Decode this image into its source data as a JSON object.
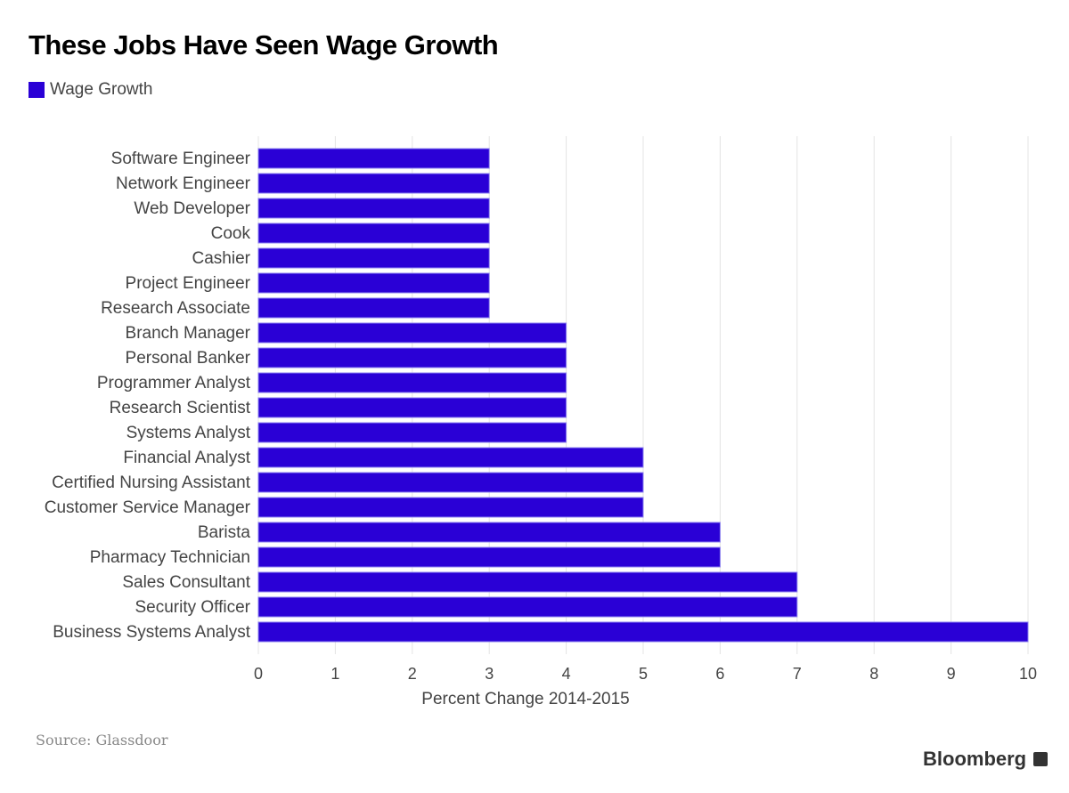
{
  "title": "These Jobs Have Seen Wage Growth",
  "source": "Source: Glassdoor",
  "logo": "Bloomberg",
  "chart_data": {
    "type": "bar",
    "orientation": "horizontal",
    "title": "These Jobs Have Seen Wage Growth",
    "xlabel": "Percent Change 2014-2015",
    "ylabel": "",
    "xlim": [
      0,
      10
    ],
    "xticks": [
      "0",
      "1",
      "2",
      "3",
      "4",
      "5",
      "6",
      "7",
      "8",
      "9",
      "10"
    ],
    "grid": true,
    "legend_placement": "top-left",
    "color": "#2a00d6",
    "categories": [
      "Software Engineer",
      "Network Engineer",
      "Web Developer",
      "Cook",
      "Cashier",
      "Project Engineer",
      "Research Associate",
      "Branch Manager",
      "Personal Banker",
      "Programmer Analyst",
      "Research Scientist",
      "Systems Analyst",
      "Financial Analyst",
      "Certified Nursing Assistant",
      "Customer Service Manager",
      "Barista",
      "Pharmacy Technician",
      "Sales Consultant",
      "Security Officer",
      "Business Systems Analyst"
    ],
    "series": [
      {
        "name": "Wage Growth",
        "values": [
          3,
          3,
          3,
          3,
          3,
          3,
          3,
          4,
          4,
          4,
          4,
          4,
          5,
          5,
          5,
          6,
          6,
          7,
          7,
          10
        ]
      }
    ]
  }
}
